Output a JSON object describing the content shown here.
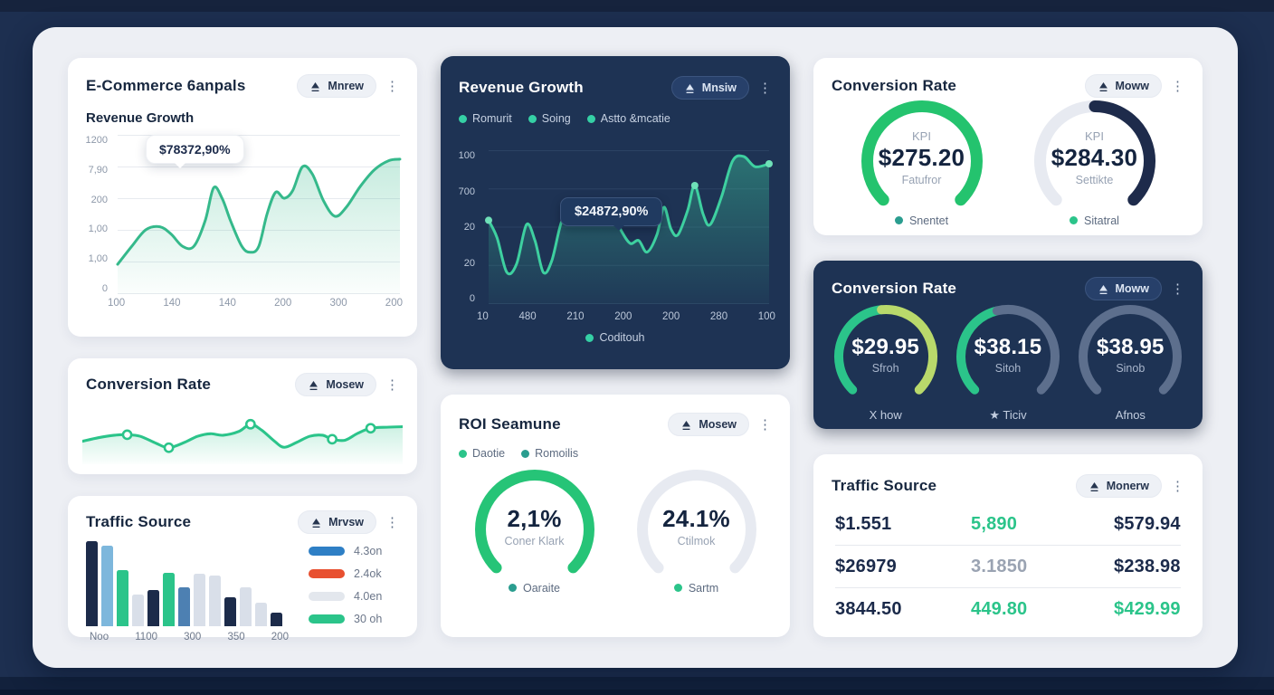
{
  "colors": {
    "page_bg": "#1d2f50",
    "container_bg": "#edeff4",
    "card_bg": "#ffffff",
    "dark_card_bg": "#1e3354",
    "accent_green": "#2bc48a",
    "accent_teal": "#35d0a5",
    "accent_navy": "#1c2b4a"
  },
  "cards": {
    "ecommerce": {
      "title": "E-Commerce 6anpals",
      "menu_label": "Mnrew",
      "subtitle": "Revenue Growth",
      "tooltip": "$78372,90%"
    },
    "conversion_spark": {
      "title": "Conversion Rate",
      "menu_label": "Mosew"
    },
    "traffic_bars": {
      "title": "Traffic Source",
      "menu_label": "Mrvsw"
    },
    "revenue_dark": {
      "title": "Revenue Growth",
      "menu_label": "Mnsiw",
      "tooltip": "$24872,90%",
      "series_legend": [
        "Romurit",
        "Soing",
        "Astto &mcatie"
      ],
      "bottom_legend": "Coditouh"
    },
    "roi": {
      "title": "ROI Seamune",
      "menu_label": "Mosew",
      "legend": [
        {
          "label": "Daotie",
          "color": "#2bc48a"
        },
        {
          "label": "Romoilis",
          "color": "#2a9d8f"
        }
      ]
    },
    "conversion_kpi": {
      "title": "Conversion Rate",
      "menu_label": "Moww"
    },
    "conversion_dark": {
      "title": "Conversion Rate",
      "menu_label": "Moww"
    },
    "traffic_table": {
      "title": "Traffic Source",
      "menu_label": "Monerw",
      "rows": [
        [
          {
            "text": "$1.551",
            "tone": "dark"
          },
          {
            "text": "5,890",
            "tone": "green"
          },
          {
            "text": "$579.94",
            "tone": "dark"
          }
        ],
        [
          {
            "text": "$26979",
            "tone": "dark"
          },
          {
            "text": "3.1850",
            "tone": "gray"
          },
          {
            "text": "$238.98",
            "tone": "dark"
          }
        ],
        [
          {
            "text": "3844.50",
            "tone": "dark"
          },
          {
            "text": "449.80",
            "tone": "green"
          },
          {
            "text": "$429.99",
            "tone": "green"
          }
        ]
      ]
    }
  },
  "chart_data": [
    {
      "id": "revenue-area-light",
      "type": "area",
      "title": "Revenue Growth",
      "y_ticks": [
        "1200",
        "7,90",
        "200",
        "1,00",
        "1,00",
        "0"
      ],
      "x_ticks": [
        "100",
        "140",
        "140",
        "200",
        "300",
        "200"
      ],
      "line_color": "#35b98b",
      "tooltip": "$78372,90%",
      "points": [
        [
          0,
          0.18
        ],
        [
          0.05,
          0.3
        ],
        [
          0.1,
          0.41
        ],
        [
          0.15,
          0.43
        ],
        [
          0.19,
          0.38
        ],
        [
          0.23,
          0.3
        ],
        [
          0.27,
          0.3
        ],
        [
          0.31,
          0.47
        ],
        [
          0.34,
          0.69
        ],
        [
          0.37,
          0.62
        ],
        [
          0.4,
          0.47
        ],
        [
          0.44,
          0.3
        ],
        [
          0.47,
          0.26
        ],
        [
          0.5,
          0.3
        ],
        [
          0.53,
          0.52
        ],
        [
          0.56,
          0.66
        ],
        [
          0.59,
          0.62
        ],
        [
          0.62,
          0.67
        ],
        [
          0.655,
          0.83
        ],
        [
          0.69,
          0.78
        ],
        [
          0.73,
          0.6
        ],
        [
          0.77,
          0.5
        ],
        [
          0.81,
          0.56
        ],
        [
          0.86,
          0.7
        ],
        [
          0.91,
          0.81
        ],
        [
          0.96,
          0.87
        ],
        [
          1,
          0.88
        ]
      ],
      "marker_indices": []
    },
    {
      "id": "revenue-area-dark",
      "type": "area",
      "title": "Revenue Growth",
      "y_ticks": [
        "100",
        "700",
        "20",
        "20",
        "0"
      ],
      "x_ticks": [
        "10",
        "480",
        "210",
        "200",
        "200",
        "280",
        "100"
      ],
      "line_color": "#3ed0a0",
      "tooltip": "$24872,90%",
      "series_legend": [
        "Romurit",
        "Soing",
        "Astto &mcatie"
      ],
      "caption_legend": "Coditouh",
      "points": [
        [
          0,
          0.56
        ],
        [
          0.03,
          0.44
        ],
        [
          0.065,
          0.2
        ],
        [
          0.1,
          0.26
        ],
        [
          0.135,
          0.53
        ],
        [
          0.165,
          0.42
        ],
        [
          0.195,
          0.2
        ],
        [
          0.225,
          0.28
        ],
        [
          0.26,
          0.55
        ],
        [
          0.29,
          0.61
        ],
        [
          0.32,
          0.58
        ],
        [
          0.35,
          0.6
        ],
        [
          0.38,
          0.57
        ],
        [
          0.41,
          0.61
        ],
        [
          0.445,
          0.59
        ],
        [
          0.475,
          0.48
        ],
        [
          0.505,
          0.4
        ],
        [
          0.535,
          0.42
        ],
        [
          0.565,
          0.34
        ],
        [
          0.6,
          0.46
        ],
        [
          0.625,
          0.65
        ],
        [
          0.65,
          0.5
        ],
        [
          0.675,
          0.46
        ],
        [
          0.71,
          0.63
        ],
        [
          0.735,
          0.8
        ],
        [
          0.765,
          0.6
        ],
        [
          0.79,
          0.53
        ],
        [
          0.83,
          0.72
        ],
        [
          0.87,
          0.97
        ],
        [
          0.91,
          1.0
        ],
        [
          0.95,
          0.93
        ],
        [
          1,
          0.95
        ]
      ],
      "marker_indices": [
        0,
        24,
        31
      ]
    },
    {
      "id": "conversion-sparkline",
      "type": "line",
      "title": "Conversion Rate",
      "line_color": "#2bc48a",
      "points": [
        [
          0,
          0.4
        ],
        [
          0.05,
          0.47
        ],
        [
          0.1,
          0.52
        ],
        [
          0.14,
          0.53
        ],
        [
          0.18,
          0.5
        ],
        [
          0.23,
          0.36
        ],
        [
          0.27,
          0.27
        ],
        [
          0.32,
          0.38
        ],
        [
          0.36,
          0.5
        ],
        [
          0.4,
          0.55
        ],
        [
          0.44,
          0.52
        ],
        [
          0.49,
          0.6
        ],
        [
          0.525,
          0.74
        ],
        [
          0.56,
          0.62
        ],
        [
          0.6,
          0.4
        ],
        [
          0.63,
          0.28
        ],
        [
          0.67,
          0.38
        ],
        [
          0.71,
          0.5
        ],
        [
          0.75,
          0.52
        ],
        [
          0.78,
          0.44
        ],
        [
          0.82,
          0.42
        ],
        [
          0.86,
          0.56
        ],
        [
          0.9,
          0.66
        ],
        [
          0.95,
          0.68
        ],
        [
          1,
          0.69
        ]
      ],
      "marker_indices": [
        3,
        6,
        12,
        19,
        22
      ]
    },
    {
      "id": "traffic-bars",
      "type": "bar",
      "title": "Traffic Source",
      "x_ticks": [
        "Noo",
        "1100",
        "300",
        "350",
        "200"
      ],
      "bars": [
        {
          "value": 1.0,
          "color": "#1c2b4a"
        },
        {
          "value": 0.95,
          "color": "#7db7dc"
        },
        {
          "value": 0.66,
          "color": "#2bc48a"
        },
        {
          "value": 0.37,
          "color": "#d9dfe9"
        },
        {
          "value": 0.43,
          "color": "#1c2b4a"
        },
        {
          "value": 0.63,
          "color": "#2bc48a"
        },
        {
          "value": 0.46,
          "color": "#4d80b2"
        },
        {
          "value": 0.62,
          "color": "#d9dfe9"
        },
        {
          "value": 0.6,
          "color": "#d9dfe9"
        },
        {
          "value": 0.34,
          "color": "#1c2b4a"
        },
        {
          "value": 0.46,
          "color": "#d9dfe9"
        },
        {
          "value": 0.28,
          "color": "#d9dfe9"
        },
        {
          "value": 0.16,
          "color": "#1c2b4a"
        }
      ],
      "legend": [
        {
          "label": "4.3on",
          "color": "#2e7fc5"
        },
        {
          "label": "2.4ok",
          "color": "#e85030"
        },
        {
          "label": "4.0en",
          "color": "#e3e7ed"
        },
        {
          "label": "30 oh",
          "color": "#2bc48a"
        }
      ]
    },
    {
      "id": "kpi-gauges",
      "type": "gauge",
      "title": "Conversion Rate",
      "gauges": [
        {
          "eyebrow": "KPI",
          "value": "$275.20",
          "label": "Fatufror",
          "legend": "Snentet",
          "legend_color": "#2a9d8f",
          "segments": [
            {
              "color": "#24c36e",
              "frac": 1
            }
          ]
        },
        {
          "eyebrow": "KPI",
          "value": "$284.30",
          "label": "Settikte",
          "legend": "Sitatral",
          "legend_color": "#2bc48a",
          "segments": [
            {
              "color": "#e7eaf1",
              "frac": 0.5
            },
            {
              "color": "#1e2b4b",
              "frac": 0.5
            }
          ]
        }
      ]
    },
    {
      "id": "dark-gauges",
      "type": "gauge",
      "title": "Conversion Rate",
      "gauges": [
        {
          "value": "$29.95",
          "label": "Sfroh",
          "footer": "X how",
          "segments": [
            {
              "color": "#2bc48a",
              "frac": 0.48
            },
            {
              "color": "#b9d96b",
              "frac": 0.52
            }
          ]
        },
        {
          "value": "$38.15",
          "label": "Sitoh",
          "footer": "★ Ticiv",
          "segments": [
            {
              "color": "#2bc48a",
              "frac": 0.45
            },
            {
              "color": "#5d6f8d",
              "frac": 0.55
            }
          ]
        },
        {
          "value": "$38.95",
          "label": "Sinob",
          "footer": "Afnos",
          "segments": [
            {
              "color": "#5d6f8d",
              "frac": 1
            }
          ]
        }
      ]
    },
    {
      "id": "roi-gauges",
      "type": "gauge",
      "title": "ROI Seamune",
      "gauges": [
        {
          "value": "2,1%",
          "label": "Coner Klark",
          "legend": "Oaraite",
          "legend_color": "#2a9d8f",
          "segments": [
            {
              "color": "#26c477",
              "frac": 1
            }
          ]
        },
        {
          "value": "24.1%",
          "label": "Ctilmok",
          "legend": "Sartm",
          "legend_color": "#2bc48a",
          "segments": [
            {
              "color": "#e7eaf1",
              "frac": 1
            }
          ]
        }
      ]
    }
  ]
}
